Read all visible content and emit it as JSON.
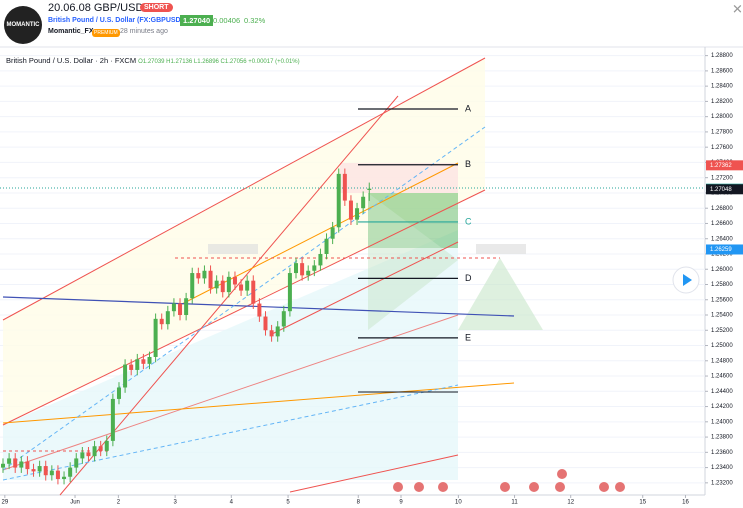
{
  "header": {
    "title": "20.06.08 GBP/USD",
    "badge": "SHORT",
    "symbol": "British Pound / U.S. Dollar (FX:GBPUSD)",
    "price": "1.27040",
    "change": "0.00406",
    "change_pct": "0.32%",
    "logo": "MOMANTIC",
    "author": "Momantic_FX",
    "author_badge": "PREMIUM",
    "time": "28 minutes ago"
  },
  "chart_data": {
    "type": "candlestick",
    "legend": {
      "name": "British Pound / U.S. Dollar",
      "interval": "2h",
      "source": "FXCM",
      "ohlc": "O1.27039 H1.27136 L1.26896 C1.27056 +0.00017 (+0.01%)"
    },
    "open": [
      1.234,
      1.2345,
      1.2352,
      1.234,
      1.2348,
      1.2338,
      1.2335,
      1.2342,
      1.233,
      1.2336,
      1.2325,
      1.2328,
      1.234,
      1.2352,
      1.236,
      1.2355,
      1.2368,
      1.2362,
      1.2375,
      1.243,
      1.2445,
      1.2475,
      1.2468,
      1.2482,
      1.2476,
      1.2485,
      1.2535,
      1.2528,
      1.2545,
      1.2555,
      1.254,
      1.2562,
      1.2595,
      1.2588,
      1.2598,
      1.2575,
      1.2585,
      1.257,
      1.259,
      1.258,
      1.2572,
      1.2585,
      1.2555,
      1.2538,
      1.252,
      1.2512,
      1.2525,
      1.2545,
      1.2595,
      1.2608,
      1.2592,
      1.2598,
      1.2605,
      1.262,
      1.264,
      1.2655,
      1.2725,
      1.269,
      1.2665,
      1.268,
      1.27039
    ],
    "high": [
      1.2352,
      1.2359,
      1.2359,
      1.2355,
      1.2355,
      1.2345,
      1.2349,
      1.2349,
      1.2343,
      1.2343,
      1.2335,
      1.2347,
      1.2359,
      1.2367,
      1.2367,
      1.2375,
      1.2375,
      1.2382,
      1.2437,
      1.2452,
      1.2482,
      1.2482,
      1.2489,
      1.2489,
      1.2492,
      1.2542,
      1.2542,
      1.2552,
      1.2562,
      1.2562,
      1.2569,
      1.2602,
      1.2602,
      1.2605,
      1.2605,
      1.2592,
      1.2592,
      1.2597,
      1.2597,
      1.2587,
      1.2592,
      1.2592,
      1.2562,
      1.2545,
      1.2527,
      1.2532,
      1.2552,
      1.2602,
      1.2615,
      1.2615,
      1.2605,
      1.2612,
      1.2627,
      1.2647,
      1.2662,
      1.2732,
      1.2732,
      1.2697,
      1.2687,
      1.2702,
      1.27136
    ],
    "low": [
      1.2333,
      1.2338,
      1.2333,
      1.2333,
      1.2331,
      1.2328,
      1.2328,
      1.2323,
      1.2323,
      1.2318,
      1.2318,
      1.2321,
      1.2333,
      1.2345,
      1.2348,
      1.2348,
      1.2355,
      1.2355,
      1.2368,
      1.2423,
      1.2438,
      1.2461,
      1.2461,
      1.2469,
      1.2469,
      1.2478,
      1.2521,
      1.2521,
      1.2538,
      1.2533,
      1.2533,
      1.2555,
      1.2581,
      1.2581,
      1.2568,
      1.2568,
      1.2563,
      1.2563,
      1.2573,
      1.2565,
      1.2565,
      1.2548,
      1.2531,
      1.2513,
      1.2505,
      1.2505,
      1.2518,
      1.2538,
      1.2588,
      1.2585,
      1.2585,
      1.2591,
      1.2598,
      1.2613,
      1.2633,
      1.2648,
      1.2683,
      1.2658,
      1.2658,
      1.2673,
      1.26896
    ],
    "close": [
      1.2345,
      1.2352,
      1.234,
      1.2348,
      1.2338,
      1.2335,
      1.2342,
      1.233,
      1.2336,
      1.2325,
      1.2328,
      1.234,
      1.2352,
      1.236,
      1.2355,
      1.2368,
      1.2362,
      1.2375,
      1.243,
      1.2445,
      1.2475,
      1.2468,
      1.2482,
      1.2476,
      1.2485,
      1.2535,
      1.2528,
      1.2545,
      1.2555,
      1.254,
      1.2562,
      1.2595,
      1.2588,
      1.2598,
      1.2575,
      1.2585,
      1.257,
      1.259,
      1.258,
      1.2572,
      1.2585,
      1.2555,
      1.2538,
      1.252,
      1.2512,
      1.2525,
      1.2545,
      1.2595,
      1.2608,
      1.2592,
      1.2598,
      1.2605,
      1.262,
      1.264,
      1.2655,
      1.2725,
      1.269,
      1.2665,
      1.268,
      1.2695,
      1.27056
    ],
    "up_color": "#4caf50",
    "down_color": "#ef5350",
    "xlim": [
      0,
      115
    ],
    "xticks": [
      {
        "value": 0.3,
        "label": "29"
      },
      {
        "value": 11.8,
        "label": "Jun"
      },
      {
        "value": 18.9,
        "label": "2"
      },
      {
        "value": 28.2,
        "label": "3"
      },
      {
        "value": 37.4,
        "label": "4"
      },
      {
        "value": 46.7,
        "label": "5"
      },
      {
        "value": 58.2,
        "label": "8"
      },
      {
        "value": 65.2,
        "label": "9"
      },
      {
        "value": 74.6,
        "label": "10"
      },
      {
        "value": 83.8,
        "label": "11"
      },
      {
        "value": 93,
        "label": "12"
      },
      {
        "value": 104.8,
        "label": "15"
      },
      {
        "value": 111.8,
        "label": "16"
      }
    ],
    "ylim": [
      1.2308,
      1.289
    ],
    "yticks": [
      {
        "value": 1.232,
        "label": "1.23200"
      },
      {
        "value": 1.234,
        "label": "1.23400"
      },
      {
        "value": 1.236,
        "label": "1.23600"
      },
      {
        "value": 1.238,
        "label": "1.23800"
      },
      {
        "value": 1.24,
        "label": "1.24000"
      },
      {
        "value": 1.242,
        "label": "1.24200"
      },
      {
        "value": 1.244,
        "label": "1.24400"
      },
      {
        "value": 1.246,
        "label": "1.24600"
      },
      {
        "value": 1.248,
        "label": "1.24800"
      },
      {
        "value": 1.25,
        "label": "1.25000"
      },
      {
        "value": 1.252,
        "label": "1.25200"
      },
      {
        "value": 1.254,
        "label": "1.25400"
      },
      {
        "value": 1.256,
        "label": "1.25600"
      },
      {
        "value": 1.258,
        "label": "1.25800"
      },
      {
        "value": 1.26,
        "label": "1.26000"
      },
      {
        "value": 1.262,
        "label": "1.26200"
      },
      {
        "value": 1.264,
        "label": "1.26400"
      },
      {
        "value": 1.266,
        "label": "1.26600"
      },
      {
        "value": 1.268,
        "label": "1.26800"
      },
      {
        "value": 1.27,
        "label": "1.27000"
      },
      {
        "value": 1.272,
        "label": "1.27200"
      },
      {
        "value": 1.274,
        "label": "1.27400"
      },
      {
        "value": 1.276,
        "label": "1.27600"
      },
      {
        "value": 1.278,
        "label": "1.27800"
      },
      {
        "value": 1.28,
        "label": "1.28000"
      },
      {
        "value": 1.282,
        "label": "1.28200"
      },
      {
        "value": 1.284,
        "label": "1.28400"
      },
      {
        "value": 1.286,
        "label": "1.28600"
      },
      {
        "value": 1.288,
        "label": "1.28800"
      }
    ],
    "price_markers": [
      {
        "value": 1.27362,
        "label": "1.27362",
        "color": "#ef5350"
      },
      {
        "value": 1.27056,
        "label": "1.27056",
        "color": "#26a69a"
      },
      {
        "value": 1.27048,
        "label": "1.27048",
        "color": "#131722"
      },
      {
        "value": 1.26259,
        "label": "1.26259",
        "color": "#2196f3"
      }
    ],
    "levels": [
      {
        "label": "A",
        "value": 1.281,
        "color": "#131722"
      },
      {
        "label": "B",
        "value": 1.2737,
        "color": "#131722"
      },
      {
        "label": "C",
        "value": 1.2662,
        "color": "#26a69a"
      },
      {
        "label": "D",
        "value": 1.2588,
        "color": "#131722"
      },
      {
        "label": "E",
        "value": 1.251,
        "color": "#131722"
      }
    ]
  }
}
